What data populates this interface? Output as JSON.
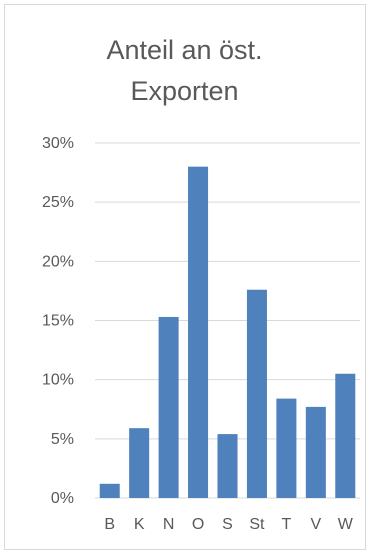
{
  "chart_data": {
    "type": "bar",
    "title_lines": [
      "Anteil an öst.",
      "Exporten"
    ],
    "categories": [
      "B",
      "K",
      "N",
      "O",
      "S",
      "St",
      "T",
      "V",
      "W"
    ],
    "values": [
      1.2,
      5.9,
      15.3,
      28.0,
      5.4,
      17.6,
      8.4,
      7.7,
      10.5
    ],
    "yticks": [
      "0%",
      "5%",
      "10%",
      "15%",
      "20%",
      "25%",
      "30%"
    ],
    "ylim": [
      0,
      30
    ],
    "unit": "%",
    "grid": true,
    "legend": false,
    "bar_color": "#4f81bd",
    "grid_color": "#d9d9d9",
    "text_color": "#595959"
  }
}
